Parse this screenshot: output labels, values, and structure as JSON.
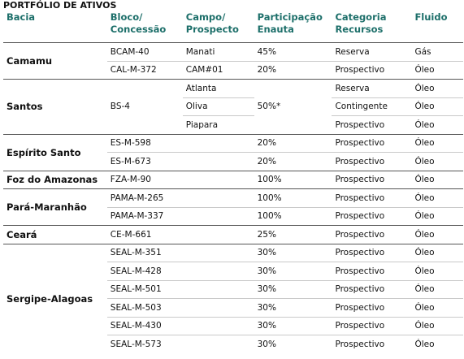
{
  "title": "PORTFÓLIO DE ATIVOS",
  "header": [
    "Bacia",
    "Bloco/\nConcessão",
    "Campo/\nProspecto",
    "Participação\nEnauta",
    "Categoria\nRecursos",
    "Fluido"
  ],
  "groups": [
    {
      "bacia": "Camamu",
      "rows": [
        {
          "bloco": "BCAM-40",
          "campo": "Manati",
          "participacao": "45%",
          "categoria": "Reserva",
          "fluido": "Gás"
        },
        {
          "bloco": "CAL-M-372",
          "campo": "CAM#01",
          "participacao": "20%",
          "categoria": "Prospectivo",
          "fluido": "Óleo"
        }
      ]
    },
    {
      "bacia": "Santos",
      "bloco": "BS-4",
      "participacao": "50%*",
      "rows": [
        {
          "campo": "Atlanta",
          "categoria": "Reserva",
          "fluido": "Óleo"
        },
        {
          "campo": "Oliva",
          "categoria": "Contingente",
          "fluido": "Óleo"
        },
        {
          "campo": "Piapara",
          "categoria": "Prospectivo",
          "fluido": "Óleo"
        }
      ]
    },
    {
      "bacia": "Espírito Santo",
      "rows": [
        {
          "bloco": "ES-M-598",
          "participacao": "20%",
          "categoria": "Prospectivo",
          "fluido": "Óleo"
        },
        {
          "bloco": "ES-M-673",
          "participacao": "20%",
          "categoria": "Prospectivo",
          "fluido": "Óleo"
        }
      ]
    },
    {
      "bacia": "Foz do Amazonas",
      "rows": [
        {
          "bloco": "FZA-M-90",
          "participacao": "100%",
          "categoria": "Prospectivo",
          "fluido": "Óleo"
        }
      ]
    },
    {
      "bacia": "Pará-Maranhão",
      "rows": [
        {
          "bloco": "PAMA-M-265",
          "participacao": "100%",
          "categoria": "Prospectivo",
          "fluido": "Óleo"
        },
        {
          "bloco": "PAMA-M-337",
          "participacao": "100%",
          "categoria": "Prospectivo",
          "fluido": "Óleo"
        }
      ]
    },
    {
      "bacia": "Ceará",
      "rows": [
        {
          "bloco": "CE-M-661",
          "participacao": "25%",
          "categoria": "Prospectivo",
          "fluido": "Óleo"
        }
      ]
    },
    {
      "bacia": "Sergipe-Alagoas",
      "rows": [
        {
          "bloco": "SEAL-M-351",
          "participacao": "30%",
          "categoria": "Prospectivo",
          "fluido": "Óleo"
        },
        {
          "bloco": "SEAL-M-428",
          "participacao": "30%",
          "categoria": "Prospectivo",
          "fluido": "Óleo"
        },
        {
          "bloco": "SEAL-M-501",
          "participacao": "30%",
          "categoria": "Prospectivo",
          "fluido": "Óleo"
        },
        {
          "bloco": "SEAL-M-503",
          "participacao": "30%",
          "categoria": "Prospectivo",
          "fluido": "Óleo"
        },
        {
          "bloco": "SEAL-M-430",
          "participacao": "30%",
          "categoria": "Prospectivo",
          "fluido": "Óleo"
        },
        {
          "bloco": "SEAL-M-573",
          "participacao": "30%",
          "categoria": "Prospectivo",
          "fluido": "Óleo"
        }
      ]
    }
  ]
}
